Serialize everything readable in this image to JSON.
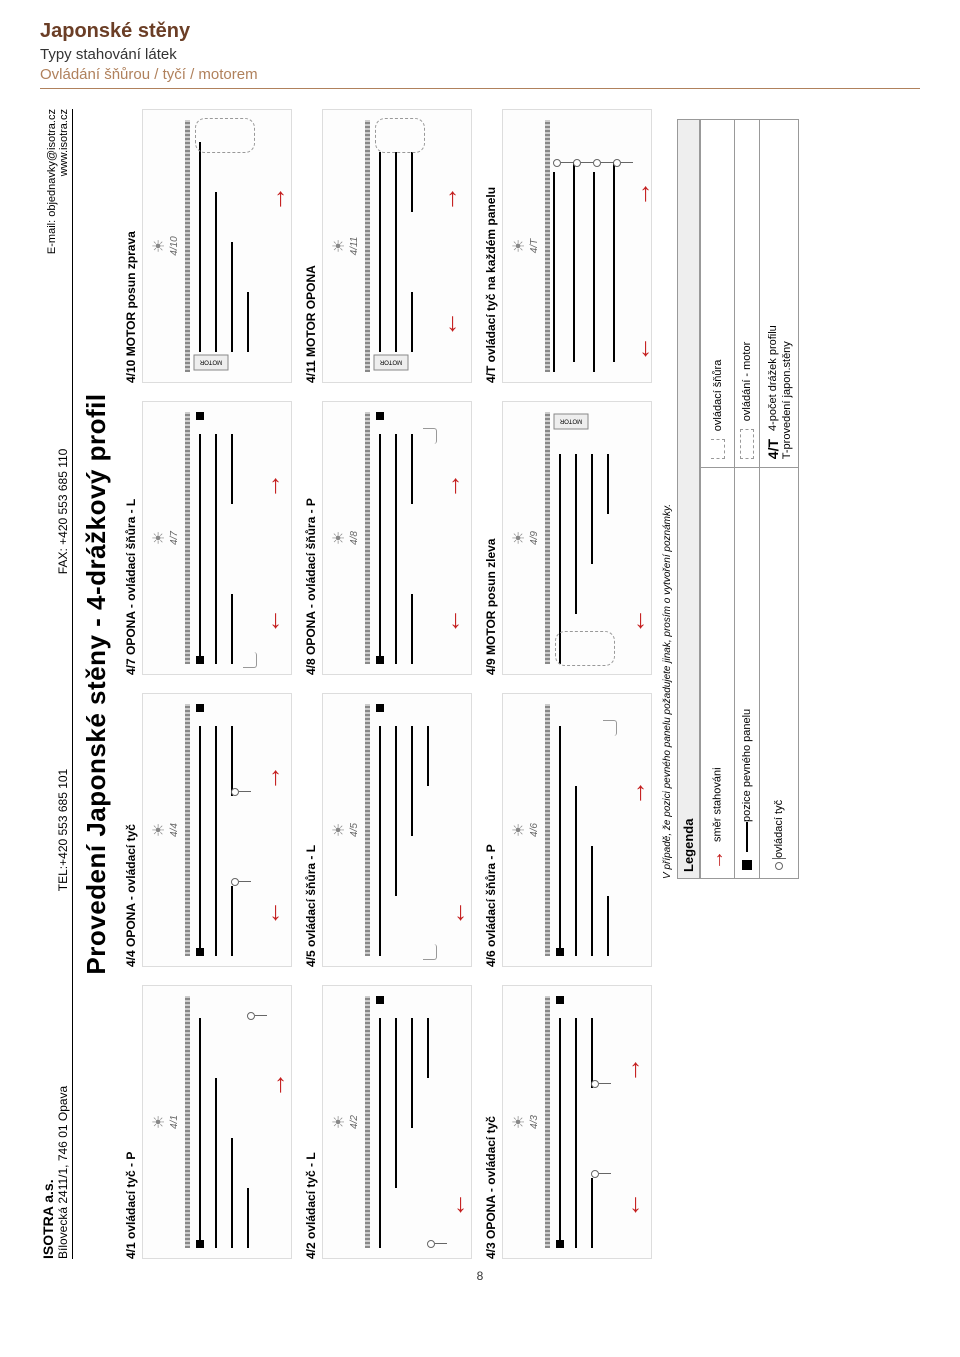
{
  "header": {
    "main_title": "Japonské stěny",
    "subtitle": "Typy stahování látek",
    "control_line": "Ovládání šňůrou / tyčí / motorem"
  },
  "doc": {
    "company": "ISOTRA a.s.",
    "address": "Bílovecká 2411/1, 746 01 Opava",
    "tel": "TEL:+420 553 685 101",
    "fax": "FAX: +420 553 685 110",
    "email": "E-mail: objednavky@isotra.cz",
    "web": "www.isotra.cz",
    "title": "Provedení Japonské stěny - 4-drážkový profil"
  },
  "cells": [
    {
      "label": "4/1 ovládací tyč - P",
      "code": "4/1",
      "type": "tyc-p"
    },
    {
      "label": "4/4 OPONA - ovládací tyč",
      "code": "4/4",
      "type": "opona-tyc"
    },
    {
      "label": "4/7 OPONA - ovládací šňůra - L",
      "code": "4/7",
      "type": "opona-snura-l"
    },
    {
      "label": "4/10 MOTOR posun zprava",
      "code": "4/10",
      "type": "motor-r"
    },
    {
      "label": "4/2 ovládací tyč - L",
      "code": "4/2",
      "type": "tyc-l"
    },
    {
      "label": "4/5 ovládací šňůra - L",
      "code": "4/5",
      "type": "snura-l"
    },
    {
      "label": "4/8 OPONA - ovládací šňůra - P",
      "code": "4/8",
      "type": "opona-snura-p"
    },
    {
      "label": "4/11 MOTOR OPONA",
      "code": "4/11",
      "type": "motor-opona"
    },
    {
      "label": "4/3 OPONA - ovládací tyč",
      "code": "4/3",
      "type": "opona-tyc2"
    },
    {
      "label": "4/6 ovládací šňůra - P",
      "code": "4/6",
      "type": "snura-p"
    },
    {
      "label": "4/9 MOTOR posun zleva",
      "code": "4/9",
      "type": "motor-l"
    },
    {
      "label": "4/T ovládací tyč na každém panelu",
      "code": "4/T",
      "type": "tyc-all"
    }
  ],
  "note": "V případě, že pozici pevného panelu požadujete jinak, prosím o vytvoření poznámky.",
  "legend": {
    "title": "Legenda",
    "rows": [
      [
        {
          "icon": "arrow",
          "text": "směr stahováni"
        },
        {
          "icon": "cord",
          "text": "ovládací šňůra"
        }
      ],
      [
        {
          "icon": "fixed",
          "text": "pozice pevného panelu"
        },
        {
          "icon": "motor",
          "text": "ovládání - motor"
        }
      ],
      [
        {
          "icon": "tyc",
          "text": "ovládací tyč"
        },
        {
          "icon": "code",
          "text": "4-počet drážek profilu\nT-provedení japon.stěny",
          "code": "4/T"
        }
      ]
    ]
  },
  "page_number": "8",
  "colors": {
    "accent_brown": "#6b3e26",
    "accent_tan": "#b0815c",
    "arrow_red": "#c41e1e"
  }
}
